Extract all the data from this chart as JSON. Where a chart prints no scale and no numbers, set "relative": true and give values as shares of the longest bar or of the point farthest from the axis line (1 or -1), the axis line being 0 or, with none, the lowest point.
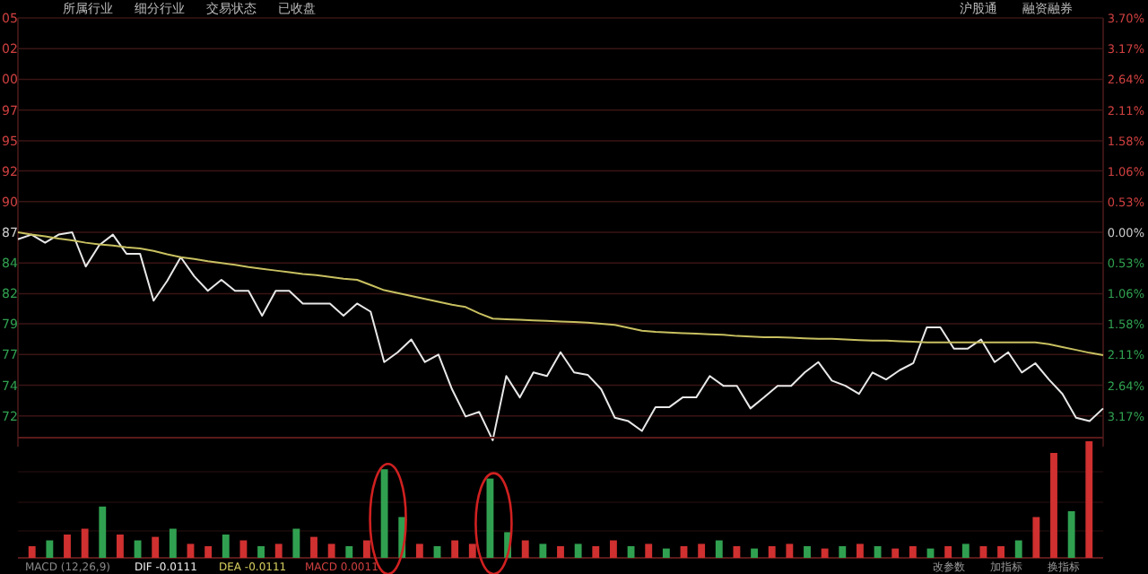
{
  "chart_data": [
    {
      "type": "line",
      "annotations": [
        "所属行业",
        "细分行业",
        "交易状态",
        "已收盘",
        "沪股通",
        "融资融券",
        "05",
        "02",
        "00",
        "97",
        "95",
        "92",
        "90",
        "87",
        "84",
        "82",
        "79",
        "77",
        "74",
        "72"
      ],
      "categories": [
        null,
        null,
        null,
        null,
        null,
        null,
        null,
        null,
        null,
        null,
        null,
        null,
        null,
        null,
        null,
        null,
        null,
        null,
        null,
        null,
        null,
        null,
        null,
        null,
        null,
        null,
        null,
        null,
        null,
        null,
        null,
        null,
        null,
        null,
        null,
        null,
        null,
        null,
        null,
        null,
        null,
        null,
        null,
        null,
        null,
        null,
        null,
        null,
        null,
        null,
        null,
        null,
        null,
        null,
        null,
        null,
        null,
        null,
        null,
        null,
        null,
        null,
        null,
        null,
        null,
        null,
        null,
        null,
        null,
        null,
        null,
        null,
        null,
        null,
        null,
        null,
        null,
        null,
        null,
        null,
        null
      ],
      "ylim": [
        -3.7,
        3.7
      ],
      "yticks": [
        {
          "value": 3.7,
          "label": "3.70%"
        },
        {
          "value": 3.17,
          "label": "3.17%"
        },
        {
          "value": 2.64,
          "label": "2.64%"
        },
        {
          "value": 2.11,
          "label": "2.11%"
        },
        {
          "value": 1.58,
          "label": "1.58%"
        },
        {
          "value": 1.06,
          "label": "1.06%"
        },
        {
          "value": 0.53,
          "label": "0.53%"
        },
        {
          "value": 0,
          "label": "0.00%"
        },
        {
          "value": -0.53,
          "label": "0.53%"
        },
        {
          "value": -1.06,
          "label": "1.06%"
        },
        {
          "value": -1.58,
          "label": "1.58%"
        },
        {
          "value": -2.11,
          "label": "2.11%"
        },
        {
          "value": -2.64,
          "label": "2.64%"
        },
        {
          "value": -3.17,
          "label": "3.17%"
        }
      ],
      "grid": true,
      "marker": "none",
      "line_style": "solid",
      "series": [
        {
          "color": "#e8e8e8",
          "values": [
            -0.12,
            -0.04,
            -0.18,
            -0.04,
            0,
            -0.59,
            -0.22,
            -0.04,
            -0.37,
            -0.37,
            -1.18,
            -0.84,
            -0.43,
            -0.76,
            -1.01,
            -0.82,
            -1.01,
            -1.01,
            -1.44,
            -1.01,
            -1.01,
            -1.23,
            -1.23,
            -1.23,
            -1.44,
            -1.23,
            -1.37,
            -2.24,
            -2.07,
            -1.85,
            -2.24,
            -2.11,
            -2.71,
            -3.18,
            -3.1,
            -3.59,
            -2.48,
            -2.85,
            -2.42,
            -2.48,
            -2.07,
            -2.42,
            -2.46,
            -2.71,
            -3.2,
            -3.26,
            -3.43,
            -3.02,
            -3.02,
            -2.85,
            -2.85,
            -2.48,
            -2.65,
            -2.65,
            -3.04,
            -2.85,
            -2.65,
            -2.65,
            -2.42,
            -2.24,
            -2.56,
            -2.65,
            -2.79,
            -2.42,
            -2.54,
            -2.38,
            -2.26,
            -1.64,
            -1.64,
            -2.01,
            -2.01,
            -1.85,
            -2.24,
            -2.07,
            -2.42,
            -2.26,
            -2.54,
            -2.79,
            -3.2,
            -3.26,
            -3.04
          ]
        },
        {
          "color": "#c8c060",
          "values": [
            0,
            -0.04,
            -0.07,
            -0.11,
            -0.14,
            -0.18,
            -0.21,
            -0.23,
            -0.26,
            -0.28,
            -0.32,
            -0.38,
            -0.43,
            -0.46,
            -0.5,
            -0.53,
            -0.56,
            -0.6,
            -0.63,
            -0.66,
            -0.69,
            -0.72,
            -0.74,
            -0.77,
            -0.8,
            -0.82,
            -0.91,
            -1,
            -1.05,
            -1.1,
            -1.15,
            -1.2,
            -1.25,
            -1.29,
            -1.4,
            -1.49,
            -1.5,
            -1.51,
            -1.52,
            -1.53,
            -1.54,
            -1.55,
            -1.56,
            -1.58,
            -1.6,
            -1.65,
            -1.7,
            -1.72,
            -1.73,
            -1.74,
            -1.75,
            -1.76,
            -1.77,
            -1.79,
            -1.8,
            -1.81,
            -1.81,
            -1.82,
            -1.83,
            -1.84,
            -1.84,
            -1.85,
            -1.86,
            -1.87,
            -1.87,
            -1.88,
            -1.89,
            -1.9,
            -1.9,
            -1.9,
            -1.9,
            -1.9,
            -1.9,
            -1.9,
            -1.9,
            -1.9,
            -1.93,
            -1.98,
            -2.03,
            -2.08,
            -2.12
          ]
        }
      ]
    },
    {
      "type": "bar",
      "relative": true,
      "annotations": [
        "MACD (12,26,9)",
        "DIF -0.0111",
        "DEA -0.0111",
        "MACD 0.0011",
        "改参数",
        "加指标",
        "换指标"
      ],
      "categories": [
        null,
        null,
        null,
        null,
        null,
        null,
        null,
        null,
        null,
        null,
        null,
        null,
        null,
        null,
        null,
        null,
        null,
        null,
        null,
        null,
        null,
        null,
        null,
        null,
        null,
        null,
        null,
        null,
        null,
        null,
        null,
        null,
        null,
        null,
        null,
        null,
        null,
        null,
        null,
        null,
        null,
        null,
        null,
        null,
        null,
        null,
        null,
        null,
        null,
        null,
        null,
        null,
        null,
        null,
        null,
        null,
        null,
        null,
        null,
        null,
        null
      ],
      "values": [
        0.1,
        0.15,
        0.2,
        0.25,
        0.44,
        0.2,
        0.15,
        0.18,
        0.25,
        0.12,
        0.1,
        0.2,
        0.15,
        0.1,
        0.12,
        0.25,
        0.18,
        0.12,
        0.1,
        0.15,
        0.76,
        0.35,
        0.12,
        0.1,
        0.15,
        0.12,
        0.68,
        0.22,
        0.15,
        0.12,
        0.1,
        0.12,
        0.1,
        0.15,
        0.1,
        0.12,
        0.08,
        0.1,
        0.12,
        0.15,
        0.1,
        0.08,
        0.1,
        0.12,
        0.1,
        0.08,
        0.1,
        0.12,
        0.1,
        0.08,
        0.1,
        0.08,
        0.1,
        0.12,
        0.1,
        0.1,
        0.15,
        0.35,
        0.9,
        0.4,
        1
      ],
      "colors": [
        "#d03030",
        "#30a050",
        "#d03030",
        "#d03030",
        "#30a050",
        "#d03030",
        "#30a050",
        "#d03030",
        "#30a050",
        "#d03030",
        "#d03030",
        "#30a050",
        "#d03030",
        "#30a050",
        "#d03030",
        "#30a050",
        "#d03030",
        "#d03030",
        "#30a050",
        "#d03030",
        "#30a050",
        "#30a050",
        "#d03030",
        "#30a050",
        "#d03030",
        "#d03030",
        "#30a050",
        "#30a050",
        "#d03030",
        "#30a050",
        "#d03030",
        "#30a050",
        "#d03030",
        "#d03030",
        "#30a050",
        "#d03030",
        "#30a050",
        "#d03030",
        "#d03030",
        "#30a050",
        "#d03030",
        "#30a050",
        "#d03030",
        "#d03030",
        "#30a050",
        "#d03030",
        "#30a050",
        "#d03030",
        "#30a050",
        "#d03030",
        "#d03030",
        "#30a050",
        "#d03030",
        "#30a050",
        "#d03030",
        "#d03030",
        "#30a050",
        "#d03030",
        "#d03030",
        "#30a050",
        "#d03030"
      ]
    }
  ]
}
